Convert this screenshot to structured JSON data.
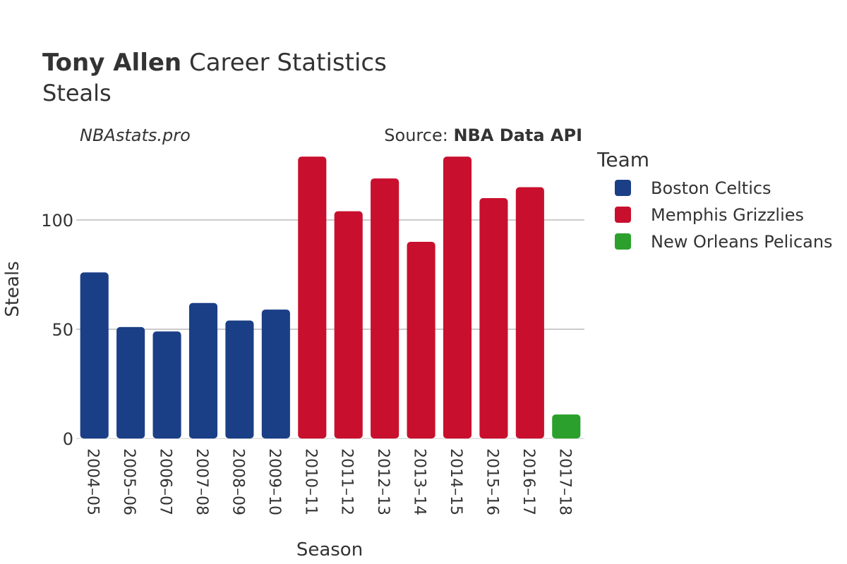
{
  "chart_data": {
    "type": "bar",
    "title_bold": "Tony Allen",
    "title_rest": " Career Statistics",
    "subtitle": "Steals",
    "watermark": "NBAstats.pro",
    "source_prefix": "Source: ",
    "source_name": "NBA Data API",
    "xlabel": "Season",
    "ylabel": "Steals",
    "ylim": [
      0,
      130
    ],
    "yticks": [
      0,
      50,
      100
    ],
    "grid": true,
    "legend": {
      "title": "Team",
      "placement": "right",
      "entries": [
        {
          "name": "Boston Celtics",
          "color": "#1b3f87"
        },
        {
          "name": "Memphis Grizzlies",
          "color": "#c8102e"
        },
        {
          "name": "New Orleans Pelicans",
          "color": "#2ca02c"
        }
      ]
    },
    "categories": [
      "2004–05",
      "2005–06",
      "2006–07",
      "2007–08",
      "2008–09",
      "2009–10",
      "2010–11",
      "2011–12",
      "2012–13",
      "2013–14",
      "2014–15",
      "2015–16",
      "2016–17",
      "2017–18"
    ],
    "values": [
      76,
      51,
      49,
      62,
      54,
      59,
      129,
      104,
      119,
      90,
      129,
      110,
      115,
      11
    ],
    "teams": [
      "Boston Celtics",
      "Boston Celtics",
      "Boston Celtics",
      "Boston Celtics",
      "Boston Celtics",
      "Boston Celtics",
      "Memphis Grizzlies",
      "Memphis Grizzlies",
      "Memphis Grizzlies",
      "Memphis Grizzlies",
      "Memphis Grizzlies",
      "Memphis Grizzlies",
      "Memphis Grizzlies",
      "New Orleans Pelicans"
    ]
  }
}
